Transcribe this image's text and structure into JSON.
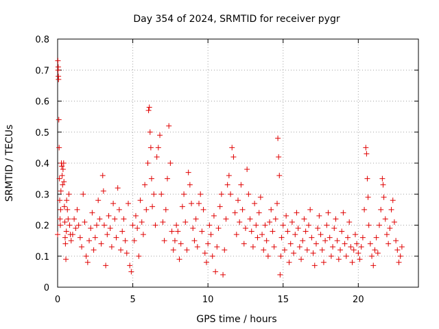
{
  "chart_data": {
    "type": "scatter",
    "title": "Day 354 of 2024, SRMTID for receiver pygr",
    "xlabel": "GPS time / hours",
    "ylabel": "SRMTID / TECUs",
    "xlim": [
      0,
      24
    ],
    "ylim": [
      0,
      0.8
    ],
    "xticks": [
      0,
      5,
      10,
      15,
      20
    ],
    "yticks": [
      0,
      0.1,
      0.2,
      0.3,
      0.4,
      0.5,
      0.6,
      0.7,
      0.8
    ],
    "xtick_labels": [
      "0",
      "5",
      "10",
      "15",
      "20"
    ],
    "ytick_labels": [
      "0",
      "0.1",
      "0.2",
      "0.3",
      "0.4",
      "0.5",
      "0.6",
      "0.7",
      "0.8"
    ],
    "grid": true,
    "marker": "plus",
    "color": "#e00000",
    "series": [
      {
        "name": "SRMTID",
        "points": [
          [
            0.0,
            0.17
          ],
          [
            0.02,
            0.73
          ],
          [
            0.03,
            0.7
          ],
          [
            0.04,
            0.71
          ],
          [
            0.05,
            0.68
          ],
          [
            0.06,
            0.67
          ],
          [
            0.08,
            0.54
          ],
          [
            0.1,
            0.45
          ],
          [
            0.12,
            0.35
          ],
          [
            0.14,
            0.28
          ],
          [
            0.16,
            0.22
          ],
          [
            0.18,
            0.2
          ],
          [
            0.2,
            0.25
          ],
          [
            0.22,
            0.31
          ],
          [
            0.25,
            0.4
          ],
          [
            0.28,
            0.39
          ],
          [
            0.3,
            0.36
          ],
          [
            0.33,
            0.33
          ],
          [
            0.36,
            0.38
          ],
          [
            0.4,
            0.4
          ],
          [
            0.42,
            0.34
          ],
          [
            0.45,
            0.26
          ],
          [
            0.48,
            0.21
          ],
          [
            0.5,
            0.16
          ],
          [
            0.52,
            0.14
          ],
          [
            0.55,
            0.09
          ],
          [
            0.58,
            0.18
          ],
          [
            0.6,
            0.28
          ],
          [
            0.65,
            0.25
          ],
          [
            0.7,
            0.22
          ],
          [
            0.75,
            0.3
          ],
          [
            0.8,
            0.2
          ],
          [
            0.85,
            0.17
          ],
          [
            0.9,
            0.15
          ],
          [
            1.0,
            0.17
          ],
          [
            1.1,
            0.22
          ],
          [
            1.2,
            0.19
          ],
          [
            1.3,
            0.25
          ],
          [
            1.4,
            0.2
          ],
          [
            1.5,
            0.16
          ],
          [
            1.6,
            0.13
          ],
          [
            1.7,
            0.3
          ],
          [
            1.8,
            0.21
          ],
          [
            1.9,
            0.1
          ],
          [
            2.0,
            0.08
          ],
          [
            2.1,
            0.15
          ],
          [
            2.2,
            0.19
          ],
          [
            2.3,
            0.24
          ],
          [
            2.4,
            0.12
          ],
          [
            2.5,
            0.16
          ],
          [
            2.6,
            0.2
          ],
          [
            2.7,
            0.28
          ],
          [
            2.8,
            0.22
          ],
          [
            2.9,
            0.14
          ],
          [
            3.0,
            0.36
          ],
          [
            3.05,
            0.31
          ],
          [
            3.1,
            0.2
          ],
          [
            3.2,
            0.07
          ],
          [
            3.3,
            0.17
          ],
          [
            3.4,
            0.23
          ],
          [
            3.5,
            0.19
          ],
          [
            3.6,
            0.13
          ],
          [
            3.7,
            0.27
          ],
          [
            3.8,
            0.22
          ],
          [
            3.9,
            0.16
          ],
          [
            4.0,
            0.32
          ],
          [
            4.1,
            0.25
          ],
          [
            4.2,
            0.12
          ],
          [
            4.3,
            0.18
          ],
          [
            4.4,
            0.22
          ],
          [
            4.5,
            0.15
          ],
          [
            4.6,
            0.11
          ],
          [
            4.7,
            0.27
          ],
          [
            4.8,
            0.07
          ],
          [
            4.9,
            0.05
          ],
          [
            5.0,
            0.2
          ],
          [
            5.1,
            0.15
          ],
          [
            5.2,
            0.23
          ],
          [
            5.3,
            0.19
          ],
          [
            5.4,
            0.1
          ],
          [
            5.5,
            0.28
          ],
          [
            5.6,
            0.21
          ],
          [
            5.7,
            0.17
          ],
          [
            5.8,
            0.33
          ],
          [
            5.9,
            0.25
          ],
          [
            6.0,
            0.4
          ],
          [
            6.05,
            0.57
          ],
          [
            6.1,
            0.58
          ],
          [
            6.15,
            0.5
          ],
          [
            6.2,
            0.45
          ],
          [
            6.25,
            0.35
          ],
          [
            6.3,
            0.26
          ],
          [
            6.4,
            0.3
          ],
          [
            6.5,
            0.2
          ],
          [
            6.6,
            0.42
          ],
          [
            6.7,
            0.45
          ],
          [
            6.8,
            0.49
          ],
          [
            6.9,
            0.3
          ],
          [
            7.0,
            0.21
          ],
          [
            7.1,
            0.15
          ],
          [
            7.2,
            0.25
          ],
          [
            7.3,
            0.35
          ],
          [
            7.4,
            0.52
          ],
          [
            7.5,
            0.4
          ],
          [
            7.6,
            0.18
          ],
          [
            7.7,
            0.12
          ],
          [
            7.8,
            0.15
          ],
          [
            7.9,
            0.2
          ],
          [
            8.0,
            0.18
          ],
          [
            8.1,
            0.09
          ],
          [
            8.2,
            0.14
          ],
          [
            8.3,
            0.26
          ],
          [
            8.4,
            0.3
          ],
          [
            8.5,
            0.21
          ],
          [
            8.6,
            0.12
          ],
          [
            8.7,
            0.37
          ],
          [
            8.8,
            0.33
          ],
          [
            8.9,
            0.27
          ],
          [
            9.0,
            0.19
          ],
          [
            9.1,
            0.15
          ],
          [
            9.2,
            0.22
          ],
          [
            9.3,
            0.13
          ],
          [
            9.4,
            0.27
          ],
          [
            9.5,
            0.3
          ],
          [
            9.6,
            0.18
          ],
          [
            9.7,
            0.25
          ],
          [
            9.8,
            0.11
          ],
          [
            9.9,
            0.08
          ],
          [
            10.0,
            0.14
          ],
          [
            10.1,
            0.2
          ],
          [
            10.2,
            0.17
          ],
          [
            10.3,
            0.1
          ],
          [
            10.4,
            0.23
          ],
          [
            10.5,
            0.05
          ],
          [
            10.6,
            0.13
          ],
          [
            10.7,
            0.19
          ],
          [
            10.8,
            0.26
          ],
          [
            10.9,
            0.3
          ],
          [
            11.0,
            0.04
          ],
          [
            11.1,
            0.12
          ],
          [
            11.2,
            0.22
          ],
          [
            11.3,
            0.33
          ],
          [
            11.4,
            0.36
          ],
          [
            11.5,
            0.3
          ],
          [
            11.6,
            0.45
          ],
          [
            11.7,
            0.42
          ],
          [
            11.8,
            0.24
          ],
          [
            11.9,
            0.17
          ],
          [
            12.0,
            0.28
          ],
          [
            12.1,
            0.21
          ],
          [
            12.2,
            0.33
          ],
          [
            12.3,
            0.25
          ],
          [
            12.4,
            0.14
          ],
          [
            12.5,
            0.19
          ],
          [
            12.6,
            0.38
          ],
          [
            12.7,
            0.3
          ],
          [
            12.8,
            0.22
          ],
          [
            12.9,
            0.18
          ],
          [
            13.0,
            0.13
          ],
          [
            13.1,
            0.27
          ],
          [
            13.2,
            0.2
          ],
          [
            13.3,
            0.16
          ],
          [
            13.4,
            0.24
          ],
          [
            13.5,
            0.29
          ],
          [
            13.6,
            0.17
          ],
          [
            13.7,
            0.12
          ],
          [
            13.8,
            0.2
          ],
          [
            13.9,
            0.15
          ],
          [
            14.0,
            0.1
          ],
          [
            14.1,
            0.21
          ],
          [
            14.2,
            0.25
          ],
          [
            14.3,
            0.18
          ],
          [
            14.4,
            0.13
          ],
          [
            14.5,
            0.22
          ],
          [
            14.6,
            0.27
          ],
          [
            14.65,
            0.48
          ],
          [
            14.7,
            0.42
          ],
          [
            14.75,
            0.36
          ],
          [
            14.8,
            0.04
          ],
          [
            14.85,
            0.1
          ],
          [
            14.9,
            0.16
          ],
          [
            15.0,
            0.2
          ],
          [
            15.1,
            0.12
          ],
          [
            15.2,
            0.23
          ],
          [
            15.3,
            0.18
          ],
          [
            15.4,
            0.08
          ],
          [
            15.5,
            0.14
          ],
          [
            15.6,
            0.21
          ],
          [
            15.7,
            0.11
          ],
          [
            15.8,
            0.17
          ],
          [
            15.9,
            0.24
          ],
          [
            16.0,
            0.19
          ],
          [
            16.1,
            0.13
          ],
          [
            16.2,
            0.09
          ],
          [
            16.3,
            0.15
          ],
          [
            16.4,
            0.22
          ],
          [
            16.5,
            0.18
          ],
          [
            16.6,
            0.12
          ],
          [
            16.7,
            0.2
          ],
          [
            16.8,
            0.25
          ],
          [
            16.9,
            0.16
          ],
          [
            17.0,
            0.11
          ],
          [
            17.1,
            0.07
          ],
          [
            17.2,
            0.14
          ],
          [
            17.3,
            0.19
          ],
          [
            17.4,
            0.23
          ],
          [
            17.5,
            0.17
          ],
          [
            17.6,
            0.12
          ],
          [
            17.7,
            0.08
          ],
          [
            17.8,
            0.15
          ],
          [
            17.9,
            0.2
          ],
          [
            18.0,
            0.24
          ],
          [
            18.1,
            0.16
          ],
          [
            18.2,
            0.1
          ],
          [
            18.3,
            0.13
          ],
          [
            18.4,
            0.19
          ],
          [
            18.5,
            0.22
          ],
          [
            18.6,
            0.15
          ],
          [
            18.7,
            0.09
          ],
          [
            18.8,
            0.12
          ],
          [
            18.9,
            0.18
          ],
          [
            19.0,
            0.24
          ],
          [
            19.1,
            0.14
          ],
          [
            19.2,
            0.1
          ],
          [
            19.3,
            0.16
          ],
          [
            19.4,
            0.21
          ],
          [
            19.5,
            0.13
          ],
          [
            19.6,
            0.08
          ],
          [
            19.7,
            0.12
          ],
          [
            19.8,
            0.17
          ],
          [
            19.9,
            0.14
          ],
          [
            20.0,
            0.11
          ],
          [
            20.1,
            0.09
          ],
          [
            20.2,
            0.13
          ],
          [
            20.3,
            0.16
          ],
          [
            20.4,
            0.25
          ],
          [
            20.5,
            0.45
          ],
          [
            20.55,
            0.43
          ],
          [
            20.6,
            0.35
          ],
          [
            20.65,
            0.29
          ],
          [
            20.7,
            0.2
          ],
          [
            20.8,
            0.14
          ],
          [
            20.9,
            0.1
          ],
          [
            21.0,
            0.07
          ],
          [
            21.1,
            0.12
          ],
          [
            21.2,
            0.16
          ],
          [
            21.3,
            0.11
          ],
          [
            21.4,
            0.2
          ],
          [
            21.5,
            0.25
          ],
          [
            21.6,
            0.35
          ],
          [
            21.65,
            0.33
          ],
          [
            21.7,
            0.29
          ],
          [
            21.8,
            0.22
          ],
          [
            21.9,
            0.17
          ],
          [
            22.0,
            0.14
          ],
          [
            22.1,
            0.19
          ],
          [
            22.2,
            0.25
          ],
          [
            22.3,
            0.28
          ],
          [
            22.4,
            0.21
          ],
          [
            22.5,
            0.15
          ],
          [
            22.6,
            0.12
          ],
          [
            22.7,
            0.08
          ],
          [
            22.8,
            0.1
          ],
          [
            22.9,
            0.13
          ]
        ]
      }
    ]
  }
}
